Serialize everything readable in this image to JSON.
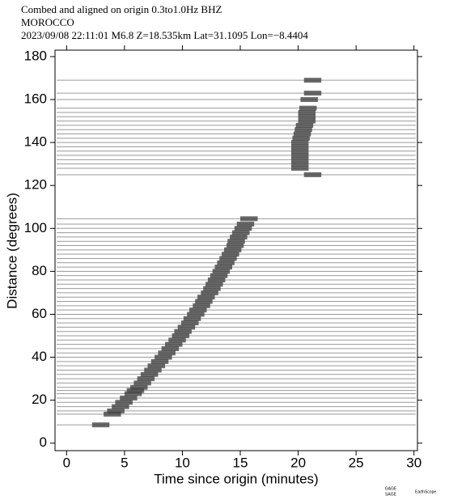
{
  "chart_data": {
    "type": "record-section",
    "header": [
      "Combed and aligned on origin  0.3to1.0Hz  BHZ",
      "MOROCCO",
      "2023/09/08  22:11:01  M6.8  Z=18.535km Lat=31.1095 Lon=−8.4404"
    ],
    "xlabel": "Time since origin (minutes)",
    "ylabel": "Distance (degrees)",
    "xlim": [
      -1,
      30.3
    ],
    "ylim": [
      -3.5,
      183
    ],
    "xticks": [
      0,
      5,
      10,
      15,
      20,
      25,
      30
    ],
    "yticks": [
      0,
      20,
      40,
      60,
      80,
      100,
      120,
      140,
      160,
      180
    ],
    "logos": [
      "GAGE",
      "SAGE",
      "EarthScope"
    ],
    "trace_color": "#9a9a9a",
    "arrival_color": "#3a3a3a",
    "traces": {
      "distance": [
        8.5,
        13.5,
        15,
        17,
        19,
        21,
        23,
        24.5,
        26,
        28,
        30,
        32,
        34,
        36,
        38,
        40,
        42,
        44,
        46,
        48,
        50,
        52,
        54,
        56,
        58,
        60,
        62,
        64,
        66,
        68,
        70,
        72,
        74,
        76,
        78,
        80,
        82,
        84,
        86,
        88,
        90,
        92,
        94,
        96,
        98,
        100,
        102,
        104.5,
        125,
        128,
        130,
        132,
        134,
        136,
        138,
        140,
        142,
        144,
        146,
        148,
        150,
        152,
        154,
        156,
        160,
        163,
        169
      ],
      "arrival": [
        2.2,
        3.2,
        3.5,
        3.9,
        4.2,
        4.6,
        5.0,
        5.2,
        5.5,
        5.8,
        6.1,
        6.4,
        6.7,
        7.0,
        7.3,
        7.6,
        7.9,
        8.2,
        8.5,
        8.8,
        9.1,
        9.3,
        9.6,
        9.9,
        10.1,
        10.4,
        10.6,
        10.9,
        11.1,
        11.3,
        11.6,
        11.8,
        12.0,
        12.2,
        12.4,
        12.6,
        12.8,
        13.0,
        13.2,
        13.4,
        13.6,
        13.8,
        13.9,
        14.1,
        14.3,
        14.5,
        14.7,
        15.0,
        20.5,
        19.4,
        19.4,
        19.4,
        19.4,
        19.4,
        19.4,
        19.4,
        19.5,
        19.6,
        19.7,
        19.8,
        20.0,
        20.0,
        20.0,
        20.1,
        20.2,
        20.5,
        20.5
      ]
    }
  }
}
